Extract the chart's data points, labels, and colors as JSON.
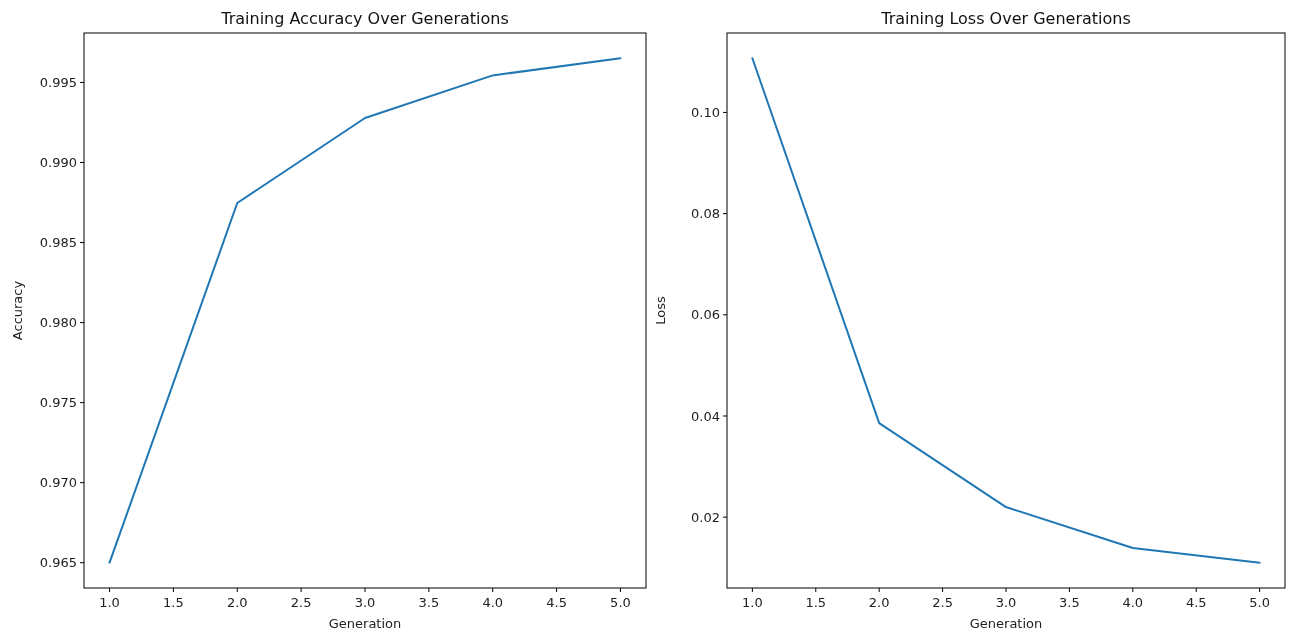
{
  "chart_data": [
    {
      "type": "line",
      "title": "Training Accuracy Over Generations",
      "xlabel": "Generation",
      "ylabel": "Accuracy",
      "x": [
        1,
        2,
        3,
        4,
        5
      ],
      "series": [
        {
          "color": "#1f77b4",
          "values": [
            0.965,
            0.98747,
            0.99278,
            0.99544,
            0.99651
          ]
        }
      ],
      "xlim": [
        0.8,
        5.2
      ],
      "xticks": [
        {
          "value": 1,
          "label": "1.0"
        },
        {
          "value": 1.5,
          "label": "1.5"
        },
        {
          "value": 2,
          "label": "2.0"
        },
        {
          "value": 2.5,
          "label": "2.5"
        },
        {
          "value": 3,
          "label": "3.0"
        },
        {
          "value": 3.5,
          "label": "3.5"
        },
        {
          "value": 4,
          "label": "4.0"
        },
        {
          "value": 4.5,
          "label": "4.5"
        },
        {
          "value": 5,
          "label": "5.0"
        }
      ],
      "ylim": [
        0.96342,
        0.99809
      ],
      "yticks": [
        0.965,
        {
          "value": 0.97,
          "label": "0.970"
        },
        0.975,
        {
          "value": 0.98,
          "label": "0.980"
        },
        0.985,
        {
          "value": 0.99,
          "label": "0.990"
        },
        0.995
      ]
    },
    {
      "type": "line",
      "title": "Training Loss Over Generations",
      "xlabel": "Generation",
      "ylabel": "Loss",
      "x": [
        1,
        2,
        3,
        4,
        5
      ],
      "series": [
        {
          "color": "#1f77b4",
          "values": [
            0.1107,
            0.0386,
            0.022,
            0.0139,
            0.011
          ]
        }
      ],
      "xlim": [
        0.8,
        5.2
      ],
      "xticks": [
        {
          "value": 1,
          "label": "1.0"
        },
        {
          "value": 1.5,
          "label": "1.5"
        },
        {
          "value": 2,
          "label": "2.0"
        },
        {
          "value": 2.5,
          "label": "2.5"
        },
        {
          "value": 3,
          "label": "3.0"
        },
        {
          "value": 3.5,
          "label": "3.5"
        },
        {
          "value": 4,
          "label": "4.0"
        },
        {
          "value": 4.5,
          "label": "4.5"
        },
        {
          "value": 5,
          "label": "5.0"
        }
      ],
      "ylim": [
        0.006,
        0.1157
      ],
      "yticks": [
        0.02,
        0.04,
        0.06,
        0.08,
        {
          "value": 0.1,
          "label": "0.10"
        }
      ]
    }
  ]
}
